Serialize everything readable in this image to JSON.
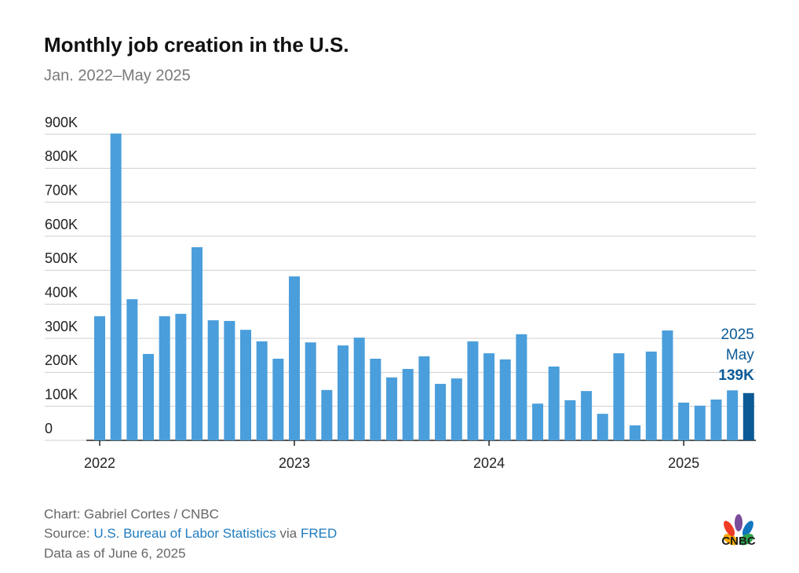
{
  "chart_data": {
    "type": "bar",
    "title": "Monthly job creation in the U.S.",
    "subtitle": "Jan. 2022–May 2025",
    "categories": [
      "2022",
      null,
      null,
      null,
      null,
      null,
      null,
      null,
      null,
      null,
      null,
      null,
      "2023",
      null,
      null,
      null,
      null,
      null,
      null,
      null,
      null,
      null,
      null,
      null,
      "2024",
      null,
      null,
      null,
      null,
      null,
      null,
      null,
      null,
      null,
      null,
      null,
      "2025",
      null,
      null,
      null,
      null
    ],
    "values": [
      365,
      902,
      415,
      254,
      365,
      372,
      568,
      353,
      351,
      325,
      291,
      240,
      482,
      288,
      148,
      279,
      302,
      240,
      185,
      210,
      247,
      166,
      182,
      291,
      256,
      238,
      312,
      108,
      217,
      118,
      145,
      78,
      256,
      44,
      261,
      323,
      111,
      102,
      120,
      147,
      139
    ],
    "value_labels": [
      null,
      null,
      null,
      null,
      null,
      null,
      null,
      null,
      null,
      null,
      null,
      null,
      null,
      null,
      null,
      null,
      null,
      null,
      null,
      null,
      null,
      null,
      null,
      null,
      null,
      null,
      null,
      null,
      null,
      null,
      null,
      null,
      null,
      null,
      null,
      null,
      null,
      null,
      null,
      null,
      "139K"
    ],
    "color": "#4a9edb",
    "highlight_color": "#0b5a96",
    "annotation": [
      "2025",
      "May"
    ],
    "ylim": [
      0,
      900
    ],
    "yticks": [
      0,
      {
        "value": 100,
        "label": "100K"
      },
      {
        "value": 200,
        "label": "200K"
      },
      {
        "value": 300,
        "label": "300K"
      },
      {
        "value": 400,
        "label": "400K"
      },
      {
        "value": 500,
        "label": "500K"
      },
      {
        "value": 600,
        "label": "600K"
      },
      {
        "value": 700,
        "label": "700K"
      },
      {
        "value": 800,
        "label": "800K"
      },
      {
        "value": 900,
        "label": "900K"
      }
    ],
    "grid": true
  },
  "footer": {
    "credit": "Chart: Gabriel Cortes / CNBC",
    "source_prefix": "Source: ",
    "source_link1": "U.S. Bureau of Labor Statistics",
    "source_mid": " via ",
    "source_link2": "FRED",
    "date": "Data as of June 6, 2025",
    "logo": "CNBC"
  }
}
